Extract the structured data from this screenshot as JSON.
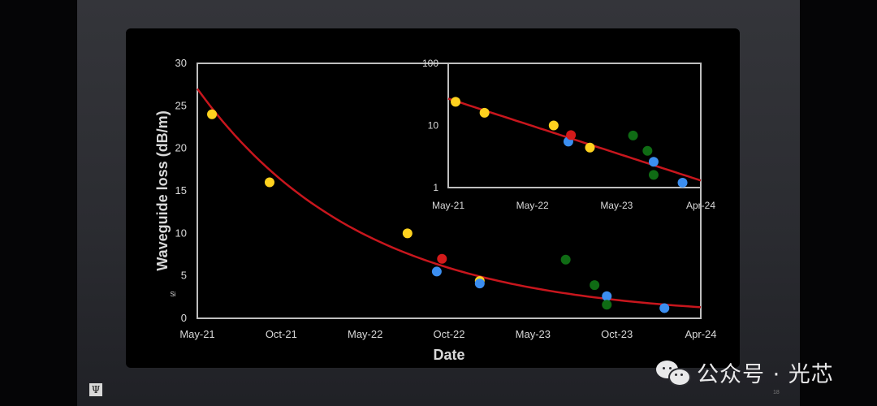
{
  "logo": {
    "glyph": "Ψ"
  },
  "watermark": {
    "text": "公众号 · 光芯"
  },
  "footer": {
    "page_number": "18"
  },
  "colors": {
    "fit": "#c8161d",
    "yellow": "#ffd21f",
    "red": "#d41a1a",
    "blue": "#3b8ef0",
    "green": "#0f6b14",
    "axis": "#bfbfbf",
    "label": "#d9d9d9"
  },
  "chart_data": [
    {
      "type": "scatter",
      "title": "",
      "xlabel": "Date",
      "ylabel": "Waveguide loss (dB/m)",
      "annotation": "Si",
      "x_ticks": [
        "May-21",
        "Oct-21",
        "May-22",
        "Oct-22",
        "May-23",
        "Oct-23",
        "Apr-24"
      ],
      "ylim": [
        0,
        30
      ],
      "y_ticks": [
        "0",
        "5",
        "10",
        "15",
        "20",
        "25",
        "30"
      ],
      "grid": false,
      "points": [
        {
          "x": "2021-06-01",
          "y": 24,
          "color": "yellow"
        },
        {
          "x": "2021-10-01",
          "y": 16,
          "color": "yellow"
        },
        {
          "x": "2022-07-20",
          "y": 10,
          "color": "yellow"
        },
        {
          "x": "2022-09-20",
          "y": 5.5,
          "color": "blue"
        },
        {
          "x": "2022-10-01",
          "y": 7,
          "color": "red"
        },
        {
          "x": "2022-12-20",
          "y": 4.4,
          "color": "yellow"
        },
        {
          "x": "2022-12-20",
          "y": 4.1,
          "color": "blue"
        },
        {
          "x": "2023-06-20",
          "y": 6.9,
          "color": "green"
        },
        {
          "x": "2023-08-20",
          "y": 3.9,
          "color": "green"
        },
        {
          "x": "2023-09-15",
          "y": 2.6,
          "color": "blue"
        },
        {
          "x": "2023-09-15",
          "y": 1.6,
          "color": "green"
        },
        {
          "x": "2024-01-15",
          "y": 1.2,
          "color": "blue"
        }
      ],
      "fit": {
        "type": "exponential",
        "color": "fit",
        "start": {
          "x": "2021-05-01",
          "y": 27
        },
        "end": {
          "x": "2024-04-01",
          "y": 1.3
        }
      }
    },
    {
      "type": "scatter",
      "title": "",
      "inset": true,
      "log_y": true,
      "x_ticks": [
        "May-21",
        "May-22",
        "May-23",
        "Apr-24"
      ],
      "ylim": [
        1,
        100
      ],
      "y_ticks": [
        "1",
        "10",
        "100"
      ],
      "grid": false,
      "points": [
        {
          "x": "2021-06-01",
          "y": 24,
          "color": "yellow"
        },
        {
          "x": "2021-10-01",
          "y": 16,
          "color": "yellow"
        },
        {
          "x": "2022-07-20",
          "y": 10,
          "color": "yellow"
        },
        {
          "x": "2022-09-20",
          "y": 5.5,
          "color": "blue"
        },
        {
          "x": "2022-10-01",
          "y": 7,
          "color": "red"
        },
        {
          "x": "2022-12-20",
          "y": 4.4,
          "color": "yellow"
        },
        {
          "x": "2023-06-20",
          "y": 6.9,
          "color": "green"
        },
        {
          "x": "2023-08-20",
          "y": 3.9,
          "color": "green"
        },
        {
          "x": "2023-09-15",
          "y": 2.6,
          "color": "blue"
        },
        {
          "x": "2023-09-15",
          "y": 1.6,
          "color": "green"
        },
        {
          "x": "2024-01-15",
          "y": 1.2,
          "color": "blue"
        }
      ],
      "fit": {
        "type": "exponential",
        "color": "fit",
        "start": {
          "x": "2021-05-01",
          "y": 27
        },
        "end": {
          "x": "2024-04-01",
          "y": 1.3
        }
      }
    }
  ]
}
